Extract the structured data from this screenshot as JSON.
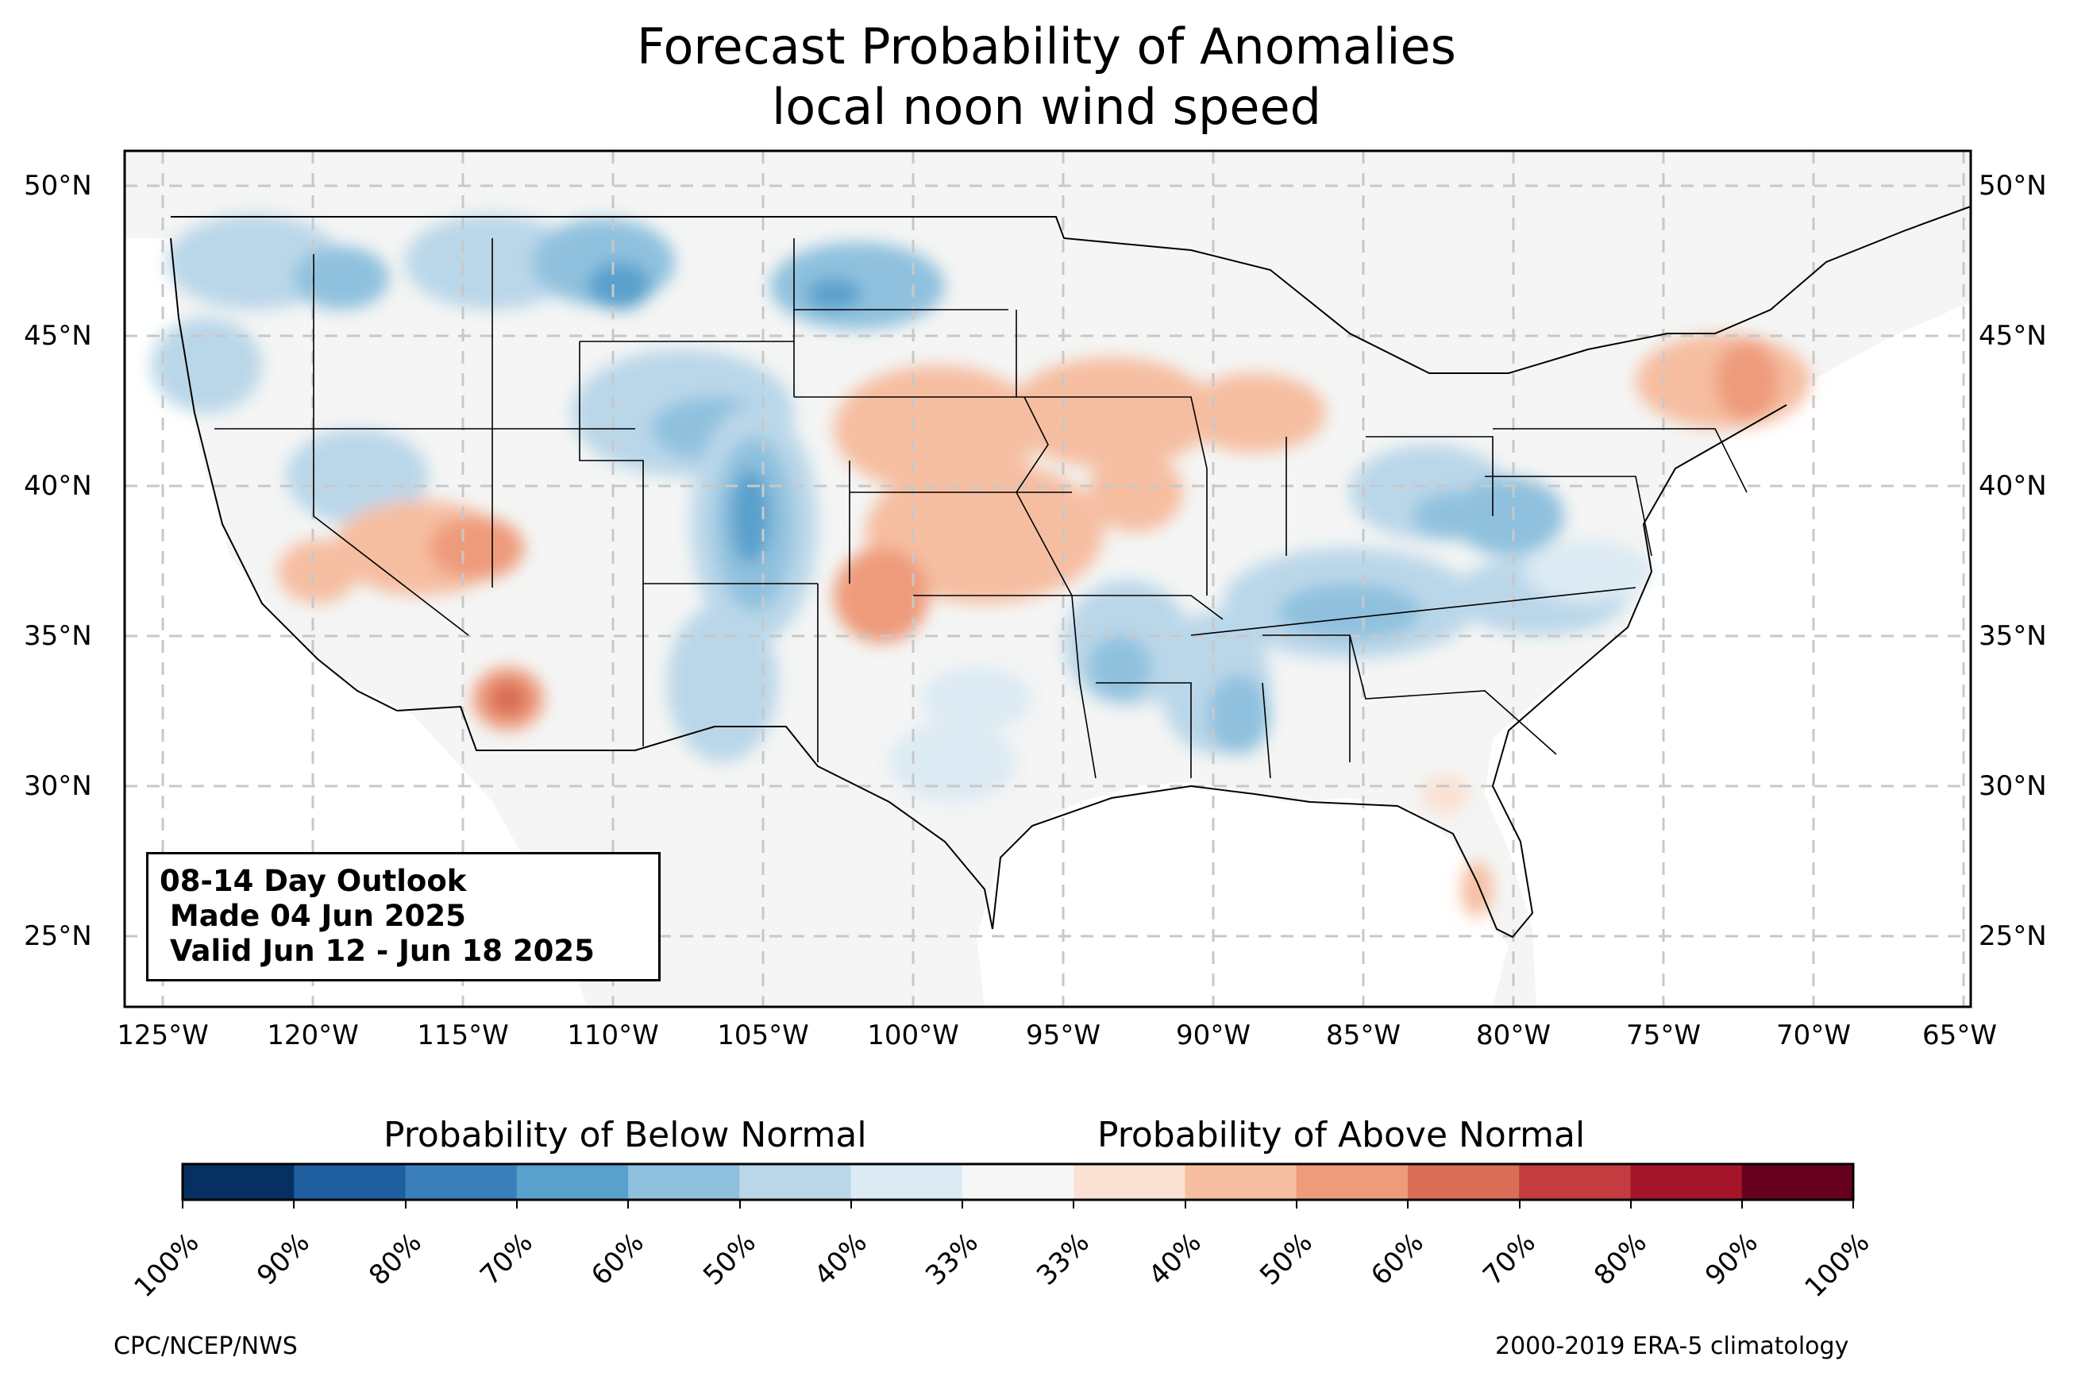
{
  "title": "Forecast Probability of Anomalies",
  "subtitle": "local noon wind speed",
  "lat_labels": [
    "50°N",
    "45°N",
    "40°N",
    "35°N",
    "30°N",
    "25°N"
  ],
  "lon_labels": [
    "125°W",
    "120°W",
    "115°W",
    "110°W",
    "105°W",
    "100°W",
    "95°W",
    "90°W",
    "85°W",
    "80°W",
    "75°W",
    "70°W",
    "65°W"
  ],
  "outlook": {
    "line1": "08-14 Day Outlook",
    "line2": " Made 04 Jun 2025",
    "line3": " Valid Jun 12 - Jun 18 2025"
  },
  "colorbar": {
    "below_label": "Probability of Below Normal",
    "above_label": "Probability of Above Normal",
    "colors": [
      "#053061",
      "#1f5fa0",
      "#3a7fbb",
      "#5aa0cc",
      "#8fc1de",
      "#bad7e9",
      "#dceaf3",
      "#f7f7f7",
      "#fbe1d3",
      "#f6bea1",
      "#ee9b7b",
      "#d96d55",
      "#c33c3f",
      "#a5152a",
      "#67001f"
    ],
    "ticks": [
      "100%",
      "90%",
      "80%",
      "70%",
      "60%",
      "50%",
      "40%",
      "33%",
      "33%",
      "40%",
      "50%",
      "60%",
      "70%",
      "80%",
      "90%",
      "100%"
    ]
  },
  "credit_left": "CPC/NCEP/NWS",
  "credit_right": "2000-2019 ERA-5 climatology"
}
